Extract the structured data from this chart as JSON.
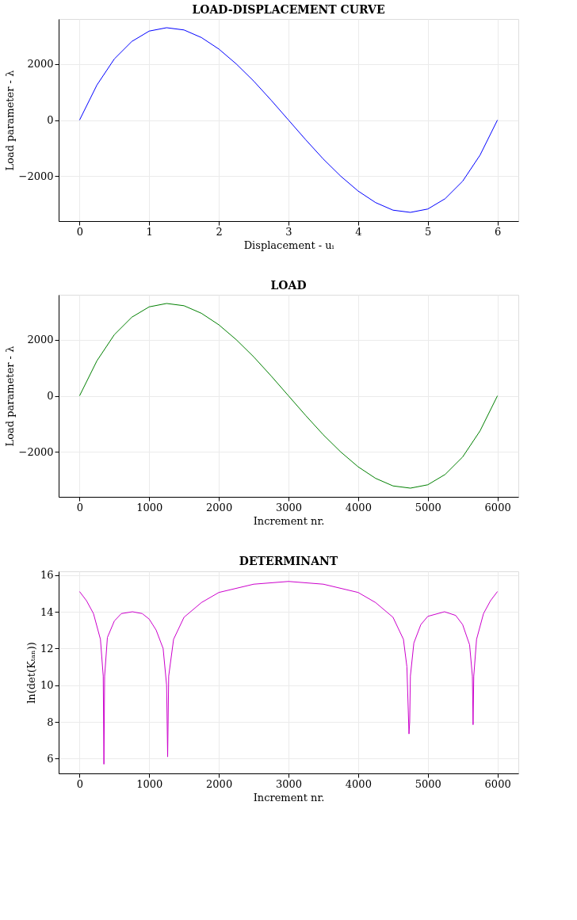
{
  "chart_data": [
    {
      "type": "line",
      "title": "LOAD-DISPLACEMENT CURVE",
      "xlabel": "Displacement - uᵢ",
      "ylabel": "Load parameter - λ",
      "x": [
        0,
        0.25,
        0.5,
        0.75,
        1,
        1.25,
        1.5,
        1.75,
        2,
        2.25,
        2.5,
        2.75,
        3,
        3.25,
        3.5,
        3.75,
        4,
        4.25,
        4.5,
        4.75,
        5,
        5.25,
        5.5,
        5.75,
        6
      ],
      "series": [
        {
          "color": "#0000ff",
          "values": [
            0,
            1250,
            2180,
            2800,
            3170,
            3290,
            3210,
            2940,
            2530,
            2000,
            1390,
            710,
            0,
            -710,
            -1390,
            -2000,
            -2530,
            -2940,
            -3210,
            -3290,
            -3170,
            -2800,
            -2180,
            -1250,
            0
          ]
        }
      ],
      "xlim": [
        -0.3,
        6.3
      ],
      "ylim": [
        -3600,
        3600
      ],
      "xticks": [
        0,
        1,
        2,
        3,
        4,
        5,
        6
      ],
      "yticks": [
        -2000,
        0,
        2000
      ],
      "grid": true
    },
    {
      "type": "line",
      "title": "LOAD",
      "xlabel": "Increment nr.",
      "ylabel": "Load parameter - λ",
      "x": [
        0,
        250,
        500,
        750,
        1000,
        1250,
        1500,
        1750,
        2000,
        2250,
        2500,
        2750,
        3000,
        3250,
        3500,
        3750,
        4000,
        4250,
        4500,
        4750,
        5000,
        5250,
        5500,
        5750,
        6000
      ],
      "series": [
        {
          "color": "#008000",
          "values": [
            0,
            1250,
            2180,
            2800,
            3170,
            3290,
            3210,
            2940,
            2530,
            2000,
            1390,
            710,
            0,
            -710,
            -1390,
            -2000,
            -2530,
            -2940,
            -3210,
            -3290,
            -3170,
            -2800,
            -2180,
            -1250,
            0
          ]
        }
      ],
      "xlim": [
        -300,
        6300
      ],
      "ylim": [
        -3600,
        3600
      ],
      "xticks": [
        0,
        1000,
        2000,
        3000,
        4000,
        5000,
        6000
      ],
      "yticks": [
        -2000,
        0,
        2000
      ],
      "grid": true
    },
    {
      "type": "line",
      "title": "DETERMINANT",
      "xlabel": "Increment nr.",
      "ylabel": "ln(det(Kₜₐₙ))",
      "x": [
        0,
        100,
        200,
        300,
        340,
        350,
        360,
        400,
        500,
        600,
        760,
        900,
        1000,
        1100,
        1200,
        1250,
        1265,
        1280,
        1350,
        1500,
        1750,
        2000,
        2500,
        3000,
        3500,
        4000,
        4250,
        4500,
        4650,
        4700,
        4730,
        4740,
        4750,
        4800,
        4900,
        5000,
        5240,
        5400,
        5500,
        5600,
        5640,
        5650,
        5660,
        5700,
        5800,
        5900,
        6000
      ],
      "series": [
        {
          "color": "#cc00cc",
          "values": [
            15.1,
            14.6,
            13.9,
            12.5,
            10.5,
            5.7,
            10.5,
            12.6,
            13.5,
            13.9,
            14.0,
            13.9,
            13.6,
            13.0,
            12.0,
            10.0,
            6.1,
            10.5,
            12.5,
            13.7,
            14.5,
            15.05,
            15.5,
            15.65,
            15.5,
            15.05,
            14.5,
            13.7,
            12.5,
            11.0,
            7.35,
            8.0,
            10.5,
            12.3,
            13.3,
            13.75,
            14.0,
            13.8,
            13.3,
            12.2,
            10.5,
            7.85,
            10.5,
            12.5,
            13.9,
            14.6,
            15.1
          ]
        }
      ],
      "xlim": [
        -300,
        6300
      ],
      "ylim": [
        5.2,
        16.2
      ],
      "xticks": [
        0,
        1000,
        2000,
        3000,
        4000,
        5000,
        6000
      ],
      "yticks": [
        6,
        8,
        10,
        12,
        14,
        16
      ],
      "grid": true
    }
  ]
}
